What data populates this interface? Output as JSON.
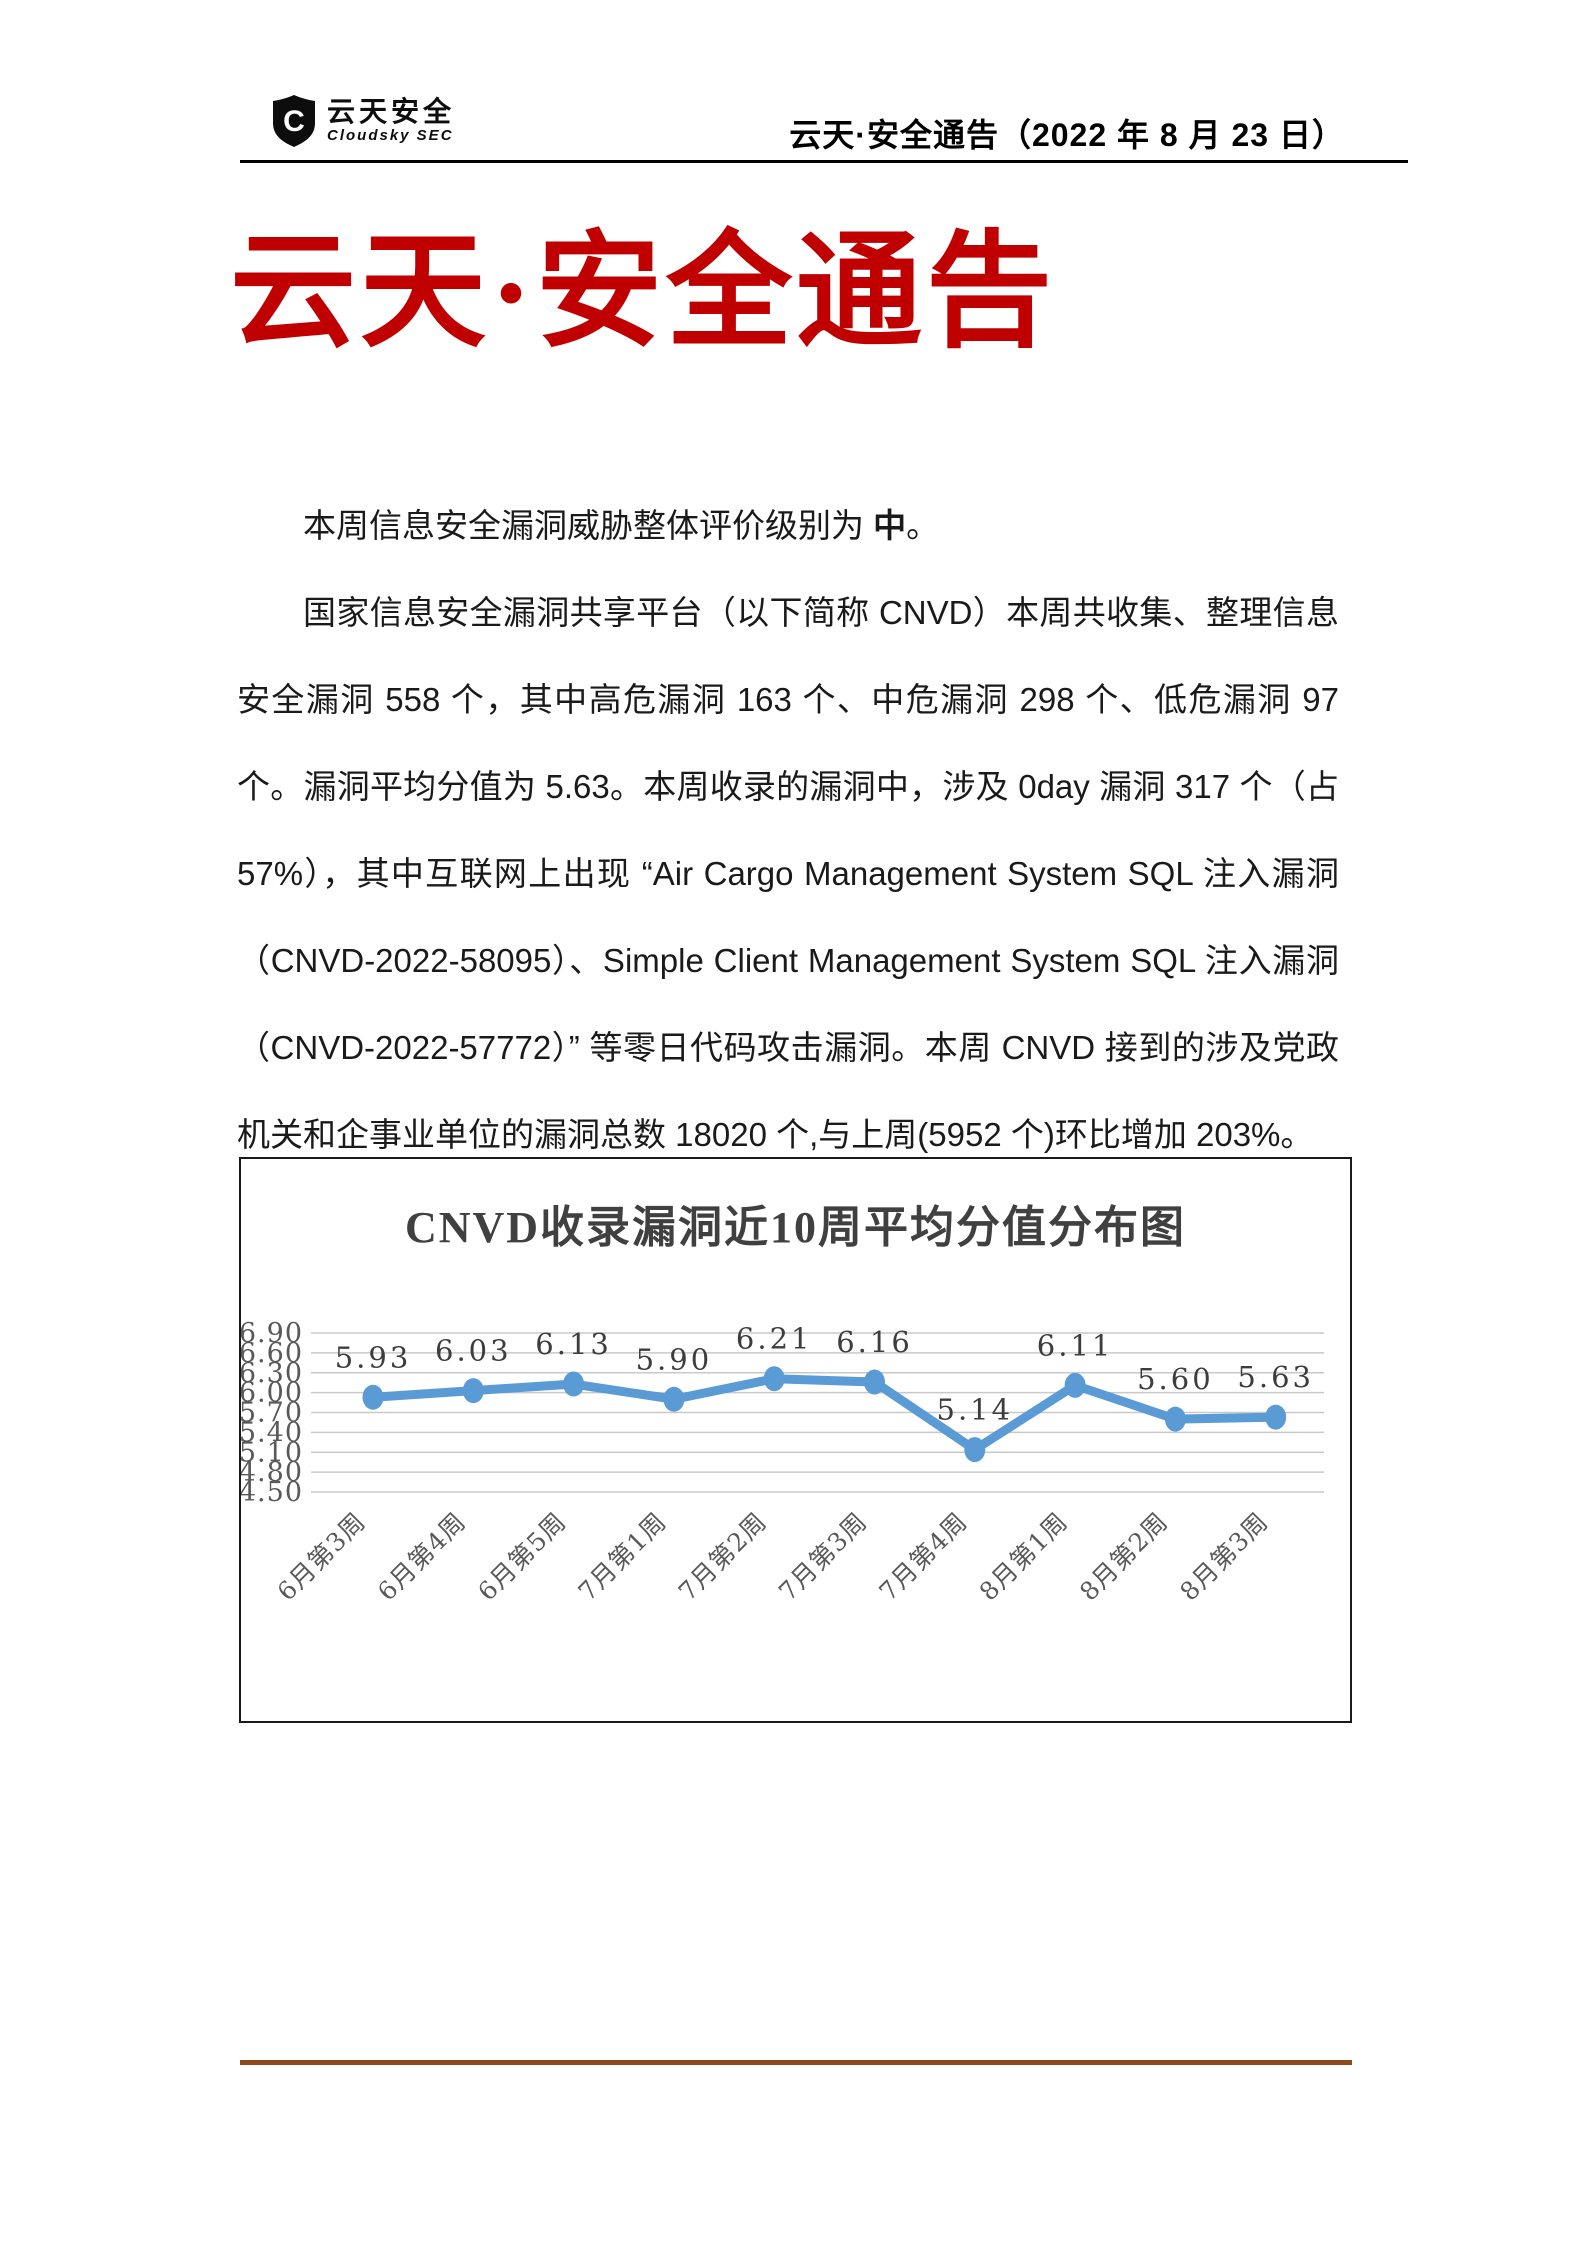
{
  "header": {
    "logo_name": "云天安全",
    "logo_sub": "Cloudsky SEC",
    "logo_icon": "shield-c-icon",
    "doc_ref": "云天·安全通告（2022 年 8 月 23 日）"
  },
  "title": "云天·安全通告",
  "body": {
    "p1_text": "本周信息安全漏洞威胁整体评价级别为 ",
    "p1_level": "中",
    "p1_end": "。",
    "p2": "国家信息安全漏洞共享平台（以下简称 CNVD）本周共收集、整理信息安全漏洞 558 个，其中高危漏洞 163 个、中危漏洞 298 个、低危漏洞 97 个。漏洞平均分值为 5.63。本周收录的漏洞中，涉及 0day 漏洞 317 个（占 57%），其中互联网上出现 “Air Cargo Management System SQL 注入漏洞（CNVD-2022-58095）、Simple Client Management System SQL 注入漏洞（CNVD-2022-57772）” 等零日代码攻击漏洞。本周 CNVD 接到的涉及党政机关和企事业单位的漏洞总数 18020 个,与上周(5952 个)环比增加 203%。"
  },
  "chart_data": {
    "type": "line",
    "title": "CNVD收录漏洞近10周平均分值分布图",
    "categories": [
      "6月第3周",
      "6月第4周",
      "6月第5周",
      "7月第1周",
      "7月第2周",
      "7月第3周",
      "7月第4周",
      "8月第1周",
      "8月第2周",
      "8月第3周"
    ],
    "values": [
      5.93,
      6.03,
      6.13,
      5.9,
      6.21,
      6.16,
      5.14,
      6.11,
      5.6,
      5.63
    ],
    "yticks": [
      6.9,
      6.6,
      6.3,
      6.0,
      5.7,
      5.4,
      5.1,
      4.8,
      4.5
    ],
    "ylim": [
      4.5,
      6.9
    ],
    "xlabel": "",
    "ylabel": "",
    "grid": true,
    "legend": "none",
    "line_color": "#5B9BD5",
    "grid_color": "#C9C9C9",
    "tick_label_color": "#595959",
    "data_label_color": "#3d3d3d"
  },
  "colors": {
    "title_red": "#C00000",
    "footer_line": "#8C4A1D"
  }
}
